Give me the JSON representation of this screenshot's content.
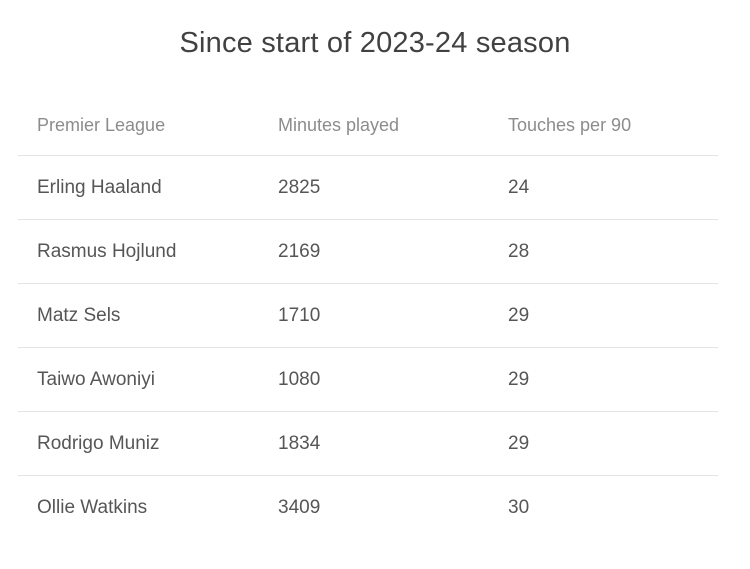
{
  "title": "Since start of 2023-24 season",
  "table": {
    "columns": {
      "player": "Premier League",
      "minutes": "Minutes played",
      "touches": "Touches per 90"
    },
    "rows": [
      {
        "player": "Erling Haaland",
        "minutes": "2825",
        "touches": "24"
      },
      {
        "player": "Rasmus Hojlund",
        "minutes": "2169",
        "touches": "28"
      },
      {
        "player": "Matz Sels",
        "minutes": "1710",
        "touches": "29"
      },
      {
        "player": "Taiwo Awoniyi",
        "minutes": "1080",
        "touches": "29"
      },
      {
        "player": "Rodrigo Muniz",
        "minutes": "1834",
        "touches": "29"
      },
      {
        "player": "Ollie Watkins",
        "minutes": "3409",
        "touches": "30"
      }
    ]
  },
  "colors": {
    "background": "#ffffff",
    "title_text": "#414141",
    "header_text": "#8c8c8c",
    "row_text": "#565656",
    "divider": "#e3e3e3"
  }
}
